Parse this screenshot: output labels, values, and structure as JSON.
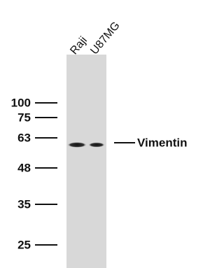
{
  "lanes": [
    "Raji",
    "U87MG"
  ],
  "markers": [
    "100",
    "75",
    "63",
    "48",
    "35",
    "25"
  ],
  "band_label": "Vimentin"
}
